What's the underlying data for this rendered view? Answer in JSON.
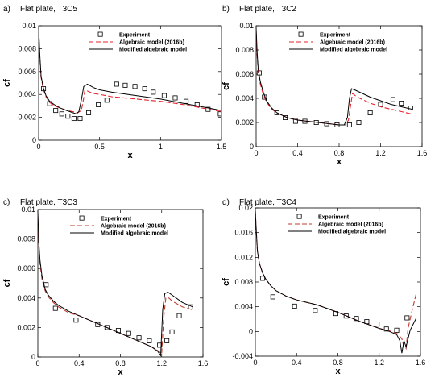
{
  "chart_data": [
    {
      "type": "line",
      "panel_label": "a)",
      "title": "Flat plate, T3C5",
      "xlabel": "x",
      "ylabel": "cf",
      "xlim": [
        0,
        1.5
      ],
      "ylim": [
        0,
        0.01
      ],
      "xticks": [
        "0",
        "0.5",
        "1",
        "1.5"
      ],
      "xtick_values": [
        0,
        0.5,
        1,
        1.5
      ],
      "yticks": [
        "0",
        "0.002",
        "0.004",
        "0.006",
        "0.008",
        "0.01"
      ],
      "ytick_values": [
        0,
        0.002,
        0.004,
        0.006,
        0.008,
        0.01
      ],
      "legend_position": "top-right",
      "series": [
        {
          "name": "Experiment",
          "style": "square-marker",
          "color": "#000000",
          "x": [
            0.04,
            0.09,
            0.14,
            0.19,
            0.24,
            0.29,
            0.34,
            0.41,
            0.49,
            0.56,
            0.64,
            0.71,
            0.79,
            0.87,
            0.94,
            1.03,
            1.12,
            1.21,
            1.3,
            1.39,
            1.49
          ],
          "y": [
            0.0045,
            0.0032,
            0.0026,
            0.0023,
            0.0021,
            0.0019,
            0.0019,
            0.0024,
            0.0031,
            0.0035,
            0.0049,
            0.0048,
            0.0047,
            0.0045,
            0.0042,
            0.0039,
            0.0037,
            0.0034,
            0.0031,
            0.0027,
            0.0023
          ]
        },
        {
          "name": "Algebraic model (2016b)",
          "style": "dashed",
          "color": "#e8202a",
          "x": [
            0,
            0.01,
            0.02,
            0.04,
            0.06,
            0.09,
            0.13,
            0.18,
            0.23,
            0.28,
            0.32,
            0.35,
            0.37,
            0.38,
            0.4,
            0.44,
            0.5,
            0.6,
            0.8,
            1.0,
            1.2,
            1.4,
            1.5
          ],
          "y": [
            0.0095,
            0.0072,
            0.0055,
            0.0044,
            0.0038,
            0.0033,
            0.003,
            0.0028,
            0.0026,
            0.0025,
            0.0024,
            0.0026,
            0.0037,
            0.0044,
            0.0043,
            0.0041,
            0.004,
            0.0038,
            0.0036,
            0.0034,
            0.0031,
            0.0027,
            0.0025
          ]
        },
        {
          "name": "Modified algebraic model",
          "style": "solid",
          "color": "#000000",
          "x": [
            0,
            0.01,
            0.02,
            0.04,
            0.06,
            0.09,
            0.13,
            0.18,
            0.23,
            0.28,
            0.31,
            0.33,
            0.35,
            0.37,
            0.4,
            0.45,
            0.5,
            0.6,
            0.8,
            1.0,
            1.2,
            1.4,
            1.5
          ],
          "y": [
            0.0098,
            0.0074,
            0.0056,
            0.0045,
            0.0039,
            0.0034,
            0.0031,
            0.0028,
            0.0026,
            0.0024,
            0.0023,
            0.0025,
            0.0035,
            0.0047,
            0.0049,
            0.0046,
            0.0044,
            0.0042,
            0.0039,
            0.0036,
            0.0032,
            0.0028,
            0.0026
          ]
        }
      ]
    },
    {
      "type": "line",
      "panel_label": "b)",
      "title": "Flat plate, T3C2",
      "xlabel": "x",
      "ylabel": "cf",
      "xlim": [
        0,
        1.6
      ],
      "ylim": [
        0,
        0.01
      ],
      "xticks": [
        "0",
        "0.4",
        "0.8",
        "1.2",
        "1.6"
      ],
      "xtick_values": [
        0,
        0.4,
        0.8,
        1.2,
        1.6
      ],
      "yticks": [
        "0",
        "0.002",
        "0.004",
        "0.006",
        "0.008",
        "0.01"
      ],
      "ytick_values": [
        0,
        0.002,
        0.004,
        0.006,
        0.008,
        0.01
      ],
      "legend_position": "top-right",
      "series": [
        {
          "name": "Experiment",
          "style": "square-marker",
          "color": "#000000",
          "x": [
            0.03,
            0.08,
            0.2,
            0.28,
            0.38,
            0.47,
            0.58,
            0.68,
            0.78,
            0.9,
            0.99,
            1.1,
            1.2,
            1.32,
            1.4,
            1.49
          ],
          "y": [
            0.0061,
            0.0041,
            0.0028,
            0.0024,
            0.0021,
            0.0021,
            0.002,
            0.0019,
            0.0018,
            0.0018,
            0.002,
            0.0028,
            0.0035,
            0.0039,
            0.0036,
            0.0032
          ]
        },
        {
          "name": "Algebraic model (2016b)",
          "style": "dashed",
          "color": "#e8202a",
          "x": [
            0,
            0.01,
            0.02,
            0.04,
            0.07,
            0.1,
            0.15,
            0.2,
            0.3,
            0.4,
            0.5,
            0.6,
            0.7,
            0.8,
            0.86,
            0.89,
            0.91,
            0.93,
            0.96,
            1.0,
            1.1,
            1.2,
            1.3,
            1.4,
            1.5
          ],
          "y": [
            0.0095,
            0.0075,
            0.0062,
            0.0052,
            0.0043,
            0.0037,
            0.0031,
            0.0028,
            0.0024,
            0.0022,
            0.0021,
            0.002,
            0.0019,
            0.0018,
            0.0018,
            0.0022,
            0.0034,
            0.0044,
            0.0042,
            0.004,
            0.0036,
            0.0033,
            0.0031,
            0.0029,
            0.0027
          ]
        },
        {
          "name": "Modified algebraic model",
          "style": "solid",
          "color": "#000000",
          "x": [
            0,
            0.01,
            0.02,
            0.04,
            0.07,
            0.1,
            0.15,
            0.2,
            0.3,
            0.4,
            0.5,
            0.6,
            0.7,
            0.8,
            0.85,
            0.88,
            0.9,
            0.92,
            0.95,
            1.0,
            1.1,
            1.2,
            1.3,
            1.4,
            1.5
          ],
          "y": [
            0.0098,
            0.0077,
            0.0064,
            0.0054,
            0.0045,
            0.0038,
            0.0032,
            0.0028,
            0.0024,
            0.0022,
            0.0021,
            0.002,
            0.0019,
            0.0018,
            0.0018,
            0.0024,
            0.004,
            0.0048,
            0.0047,
            0.0045,
            0.0041,
            0.0038,
            0.0035,
            0.0033,
            0.0031
          ]
        }
      ]
    },
    {
      "type": "line",
      "panel_label": "c)",
      "title": "Flat plate, T3C3",
      "xlabel": "x",
      "ylabel": "cf",
      "xlim": [
        0,
        1.6
      ],
      "ylim": [
        0,
        0.01
      ],
      "xticks": [
        "0",
        "0.4",
        "0.8",
        "1.2",
        "1.6"
      ],
      "xtick_values": [
        0,
        0.4,
        0.8,
        1.2,
        1.6
      ],
      "yticks": [
        "0",
        "0.002",
        "0.004",
        "0.006",
        "0.008",
        "0.01"
      ],
      "ytick_values": [
        0,
        0.002,
        0.004,
        0.006,
        0.008,
        0.01
      ],
      "legend_position": "top-right",
      "series": [
        {
          "name": "Experiment",
          "style": "square-marker",
          "color": "#000000",
          "x": [
            0.08,
            0.17,
            0.37,
            0.58,
            0.67,
            0.78,
            0.88,
            0.98,
            1.08,
            1.18,
            1.25,
            1.3,
            1.37,
            1.48
          ],
          "y": [
            0.0049,
            0.0033,
            0.0025,
            0.0022,
            0.002,
            0.0018,
            0.0016,
            0.0013,
            0.0011,
            0.0008,
            0.0011,
            0.0017,
            0.0028,
            0.0034
          ]
        },
        {
          "name": "Algebraic model (2016b)",
          "style": "dashed",
          "color": "#c0392b",
          "x": [
            0,
            0.01,
            0.02,
            0.04,
            0.07,
            0.1,
            0.15,
            0.2,
            0.3,
            0.4,
            0.5,
            0.6,
            0.7,
            0.8,
            0.9,
            1.0,
            1.1,
            1.17,
            1.2,
            1.22,
            1.24,
            1.27,
            1.3,
            1.4,
            1.5
          ],
          "y": [
            0.0095,
            0.0075,
            0.0064,
            0.0053,
            0.0045,
            0.0041,
            0.0037,
            0.0034,
            0.003,
            0.0028,
            0.0025,
            0.0022,
            0.0019,
            0.0016,
            0.0013,
            0.001,
            0.0007,
            0.0004,
            0.0002,
            0.0027,
            0.004,
            0.004,
            0.0038,
            0.0034,
            0.0032
          ]
        },
        {
          "name": "Modified algebraic model",
          "style": "solid",
          "color": "#000000",
          "x": [
            0,
            0.01,
            0.02,
            0.04,
            0.07,
            0.1,
            0.15,
            0.2,
            0.3,
            0.4,
            0.5,
            0.6,
            0.7,
            0.8,
            0.9,
            1.0,
            1.1,
            1.16,
            1.19,
            1.21,
            1.23,
            1.26,
            1.3,
            1.4,
            1.5
          ],
          "y": [
            0.0098,
            0.0077,
            0.0066,
            0.0055,
            0.0046,
            0.0042,
            0.0038,
            0.0035,
            0.0031,
            0.0028,
            0.0025,
            0.0022,
            0.0019,
            0.0016,
            0.0013,
            0.001,
            0.0007,
            0.0004,
            0.0001,
            0.0032,
            0.0043,
            0.0044,
            0.0042,
            0.0037,
            0.0034
          ]
        }
      ]
    },
    {
      "type": "line",
      "panel_label": "d)",
      "title": "Flat plate, T3C4",
      "xlabel": "x",
      "ylabel": "cf",
      "xlim": [
        0,
        1.6
      ],
      "ylim": [
        -0.004,
        0.02
      ],
      "xticks": [
        "0",
        "0.4",
        "0.8",
        "1.2",
        "1.6"
      ],
      "xtick_values": [
        0,
        0.4,
        0.8,
        1.2,
        1.6
      ],
      "yticks": [
        "-0.004",
        "0",
        "0.004",
        "0.008",
        "0.012",
        "0.016",
        "0.02"
      ],
      "ytick_values": [
        -0.004,
        0,
        0.004,
        0.008,
        0.012,
        0.016,
        0.02
      ],
      "legend_position": "top-right",
      "series": [
        {
          "name": "Experiment",
          "style": "square-marker",
          "color": "#000000",
          "x": [
            0.07,
            0.17,
            0.38,
            0.58,
            0.78,
            0.88,
            0.98,
            1.08,
            1.18,
            1.27,
            1.37,
            1.47
          ],
          "y": [
            0.0086,
            0.0056,
            0.0041,
            0.0034,
            0.0029,
            0.0025,
            0.0021,
            0.0016,
            0.0012,
            0.0004,
            0.0002,
            0.0022
          ]
        },
        {
          "name": "Algebraic model (2016b)",
          "style": "dashed",
          "color": "#c0392b",
          "x": [
            0,
            0.01,
            0.02,
            0.04,
            0.07,
            0.1,
            0.15,
            0.2,
            0.3,
            0.4,
            0.6,
            0.8,
            1.0,
            1.2,
            1.3,
            1.38,
            1.42,
            1.44,
            1.46,
            1.48,
            1.52,
            1.56
          ],
          "y": [
            0.0195,
            0.016,
            0.013,
            0.011,
            0.0095,
            0.0085,
            0.0074,
            0.0066,
            0.0057,
            0.0051,
            0.0043,
            0.0031,
            0.0017,
            0.0005,
            0.0001,
            -0.0004,
            -0.0012,
            -0.0025,
            -0.0028,
            0.0005,
            0.0035,
            0.0062
          ]
        },
        {
          "name": "Modified algebraic model",
          "style": "solid",
          "color": "#000000",
          "x": [
            0,
            0.01,
            0.02,
            0.04,
            0.07,
            0.1,
            0.15,
            0.2,
            0.3,
            0.4,
            0.6,
            0.8,
            1.0,
            1.2,
            1.3,
            1.37,
            1.4,
            1.42,
            1.44,
            1.46,
            1.5,
            1.56
          ],
          "y": [
            0.0195,
            0.016,
            0.013,
            0.011,
            0.0095,
            0.0085,
            0.0074,
            0.0066,
            0.0057,
            0.0051,
            0.0043,
            0.0031,
            0.0017,
            0.0005,
            0.0,
            -0.0005,
            -0.0015,
            -0.0035,
            -0.0015,
            -0.0025,
            0.0002,
            0.0022
          ]
        }
      ]
    }
  ]
}
